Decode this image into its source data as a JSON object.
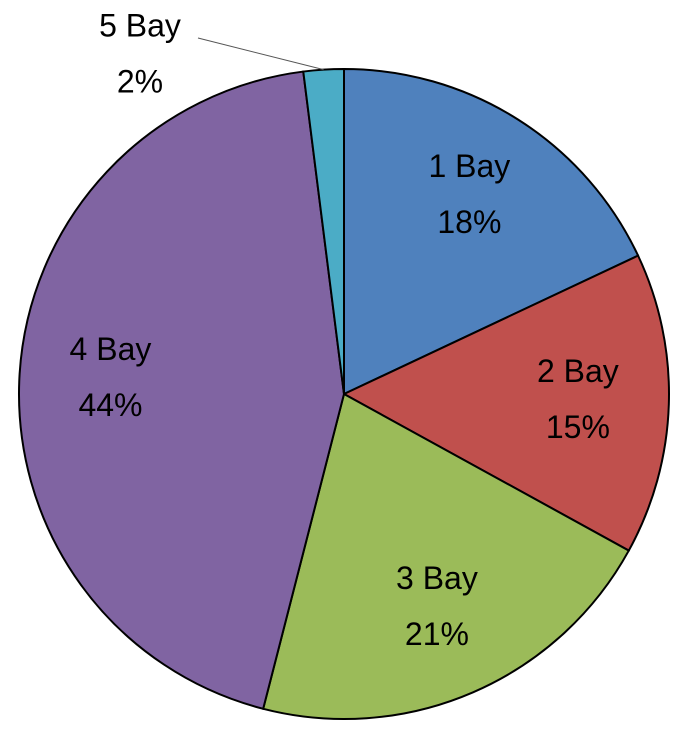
{
  "chart_data": {
    "type": "pie",
    "categories": [
      "1 Bay",
      "2 Bay",
      "3 Bay",
      "4 Bay",
      "5 Bay"
    ],
    "values": [
      18,
      15,
      21,
      44,
      2
    ],
    "value_labels": [
      "18%",
      "15%",
      "21%",
      "44%",
      "2%"
    ],
    "colors": [
      "#4f81bd",
      "#c0504d",
      "#9bbb59",
      "#8064a2",
      "#4bacc6"
    ]
  }
}
